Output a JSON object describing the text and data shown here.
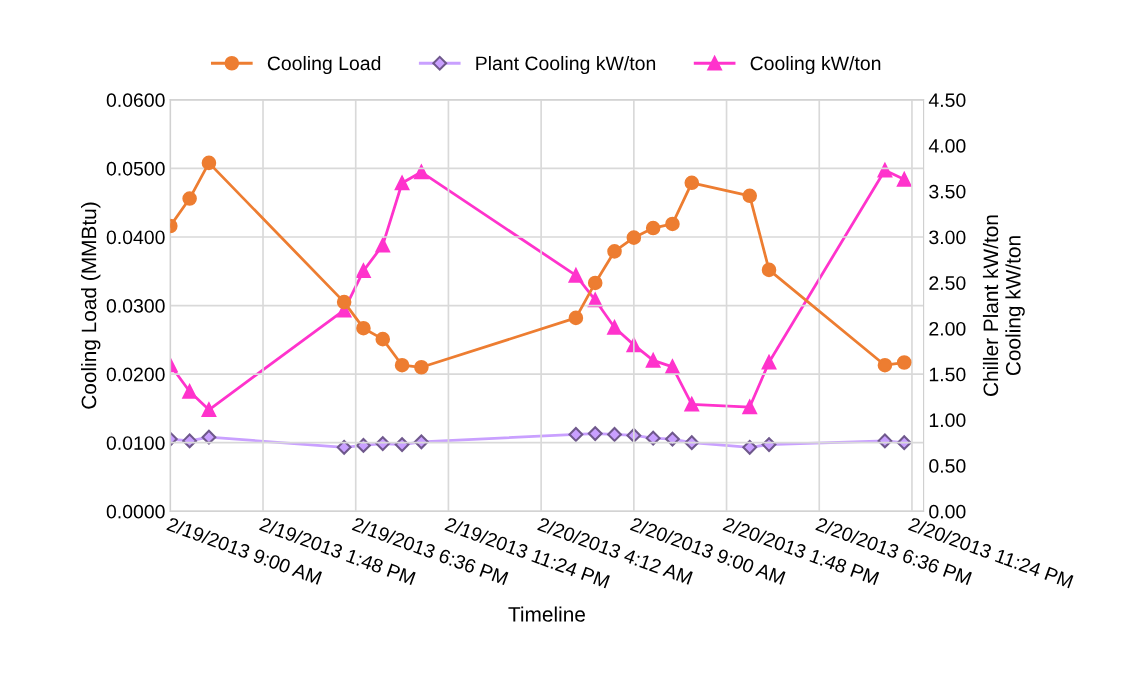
{
  "chart_data": {
    "type": "line",
    "xlabel": "Timeline",
    "ylabel": "Cooling Load (MMBtu)",
    "y2label": "Chiller Plant kW/ton\nCooling kW/ton",
    "x": [
      "2013-02-19T09:00",
      "2013-02-19T10:00",
      "2013-02-19T11:00",
      "2013-02-19T18:00",
      "2013-02-19T19:00",
      "2013-02-19T20:00",
      "2013-02-19T21:00",
      "2013-02-19T22:00",
      "2013-02-20T06:00",
      "2013-02-20T07:00",
      "2013-02-20T08:00",
      "2013-02-20T09:00",
      "2013-02-20T10:00",
      "2013-02-20T11:00",
      "2013-02-20T12:00",
      "2013-02-20T15:00",
      "2013-02-20T16:00",
      "2013-02-20T22:00",
      "2013-02-20T23:00"
    ],
    "series": [
      {
        "name": "Cooling Load",
        "color": "#ed7d31",
        "marker": "circle",
        "values": [
          0.0416,
          0.0456,
          0.0508,
          0.0305,
          0.0267,
          0.0251,
          0.0213,
          0.021,
          0.0282,
          0.0333,
          0.0379,
          0.0399,
          0.0413,
          0.0419,
          0.0479,
          0.046,
          0.0352,
          0.0213,
          0.0217
        ]
      },
      {
        "name": "Plant Cooling kW/ton",
        "color": "#c9a0ff",
        "marker": "diamond",
        "axis": "y2",
        "values": [
          0.79,
          0.77,
          0.81,
          0.7,
          0.72,
          0.74,
          0.73,
          0.76,
          0.84,
          0.85,
          0.84,
          0.83,
          0.8,
          0.79,
          0.75,
          0.7,
          0.73,
          0.77,
          0.75
        ]
      },
      {
        "name": "Cooling kW/ton",
        "color": "#ff33cc",
        "marker": "triangle",
        "axis": "y2",
        "values": [
          1.6,
          1.31,
          1.11,
          2.2,
          2.63,
          2.91,
          3.59,
          3.71,
          2.58,
          2.31,
          2.01,
          1.82,
          1.65,
          1.58,
          1.17,
          1.14,
          1.63,
          3.73,
          3.63
        ]
      }
    ],
    "xlim": [
      "2013-02-19T09:00",
      "2013-02-21T00:00"
    ],
    "xticks": [
      {
        "value": "2013-02-19T09:00",
        "label": "2/19/2013 9:00 AM"
      },
      {
        "value": "2013-02-19T13:48",
        "label": "2/19/2013 1:48 PM"
      },
      {
        "value": "2013-02-19T18:36",
        "label": "2/19/2013 6:36 PM"
      },
      {
        "value": "2013-02-19T23:24",
        "label": "2/19/2013 11:24 PM"
      },
      {
        "value": "2013-02-20T04:12",
        "label": "2/20/2013 4:12 AM"
      },
      {
        "value": "2013-02-20T09:00",
        "label": "2/20/2013 9:00 AM"
      },
      {
        "value": "2013-02-20T13:48",
        "label": "2/20/2013 1:48 PM"
      },
      {
        "value": "2013-02-20T18:36",
        "label": "2/20/2013 6:36 PM"
      },
      {
        "value": "2013-02-20T23:24",
        "label": "2/20/2013 11:24 PM"
      }
    ],
    "ylim": [
      0,
      0.06
    ],
    "yticks": [
      {
        "value": 0,
        "label": "0.0000"
      },
      {
        "value": 0.01,
        "label": "0.0100"
      },
      {
        "value": 0.02,
        "label": "0.0200"
      },
      {
        "value": 0.03,
        "label": "0.0300"
      },
      {
        "value": 0.04,
        "label": "0.0400"
      },
      {
        "value": 0.05,
        "label": "0.0500"
      },
      {
        "value": 0.06,
        "label": "0.0600"
      }
    ],
    "y2lim": [
      0,
      4.5
    ],
    "y2ticks": [
      {
        "value": 0,
        "label": "0.00"
      },
      {
        "value": 0.5,
        "label": "0.50"
      },
      {
        "value": 1,
        "label": "1.00"
      },
      {
        "value": 1.5,
        "label": "1.50"
      },
      {
        "value": 2,
        "label": "2.00"
      },
      {
        "value": 2.5,
        "label": "2.50"
      },
      {
        "value": 3,
        "label": "3.00"
      },
      {
        "value": 3.5,
        "label": "3.50"
      },
      {
        "value": 4,
        "label": "4.00"
      },
      {
        "value": 4.5,
        "label": "4.50"
      }
    ],
    "grid": true,
    "legend": "top"
  }
}
